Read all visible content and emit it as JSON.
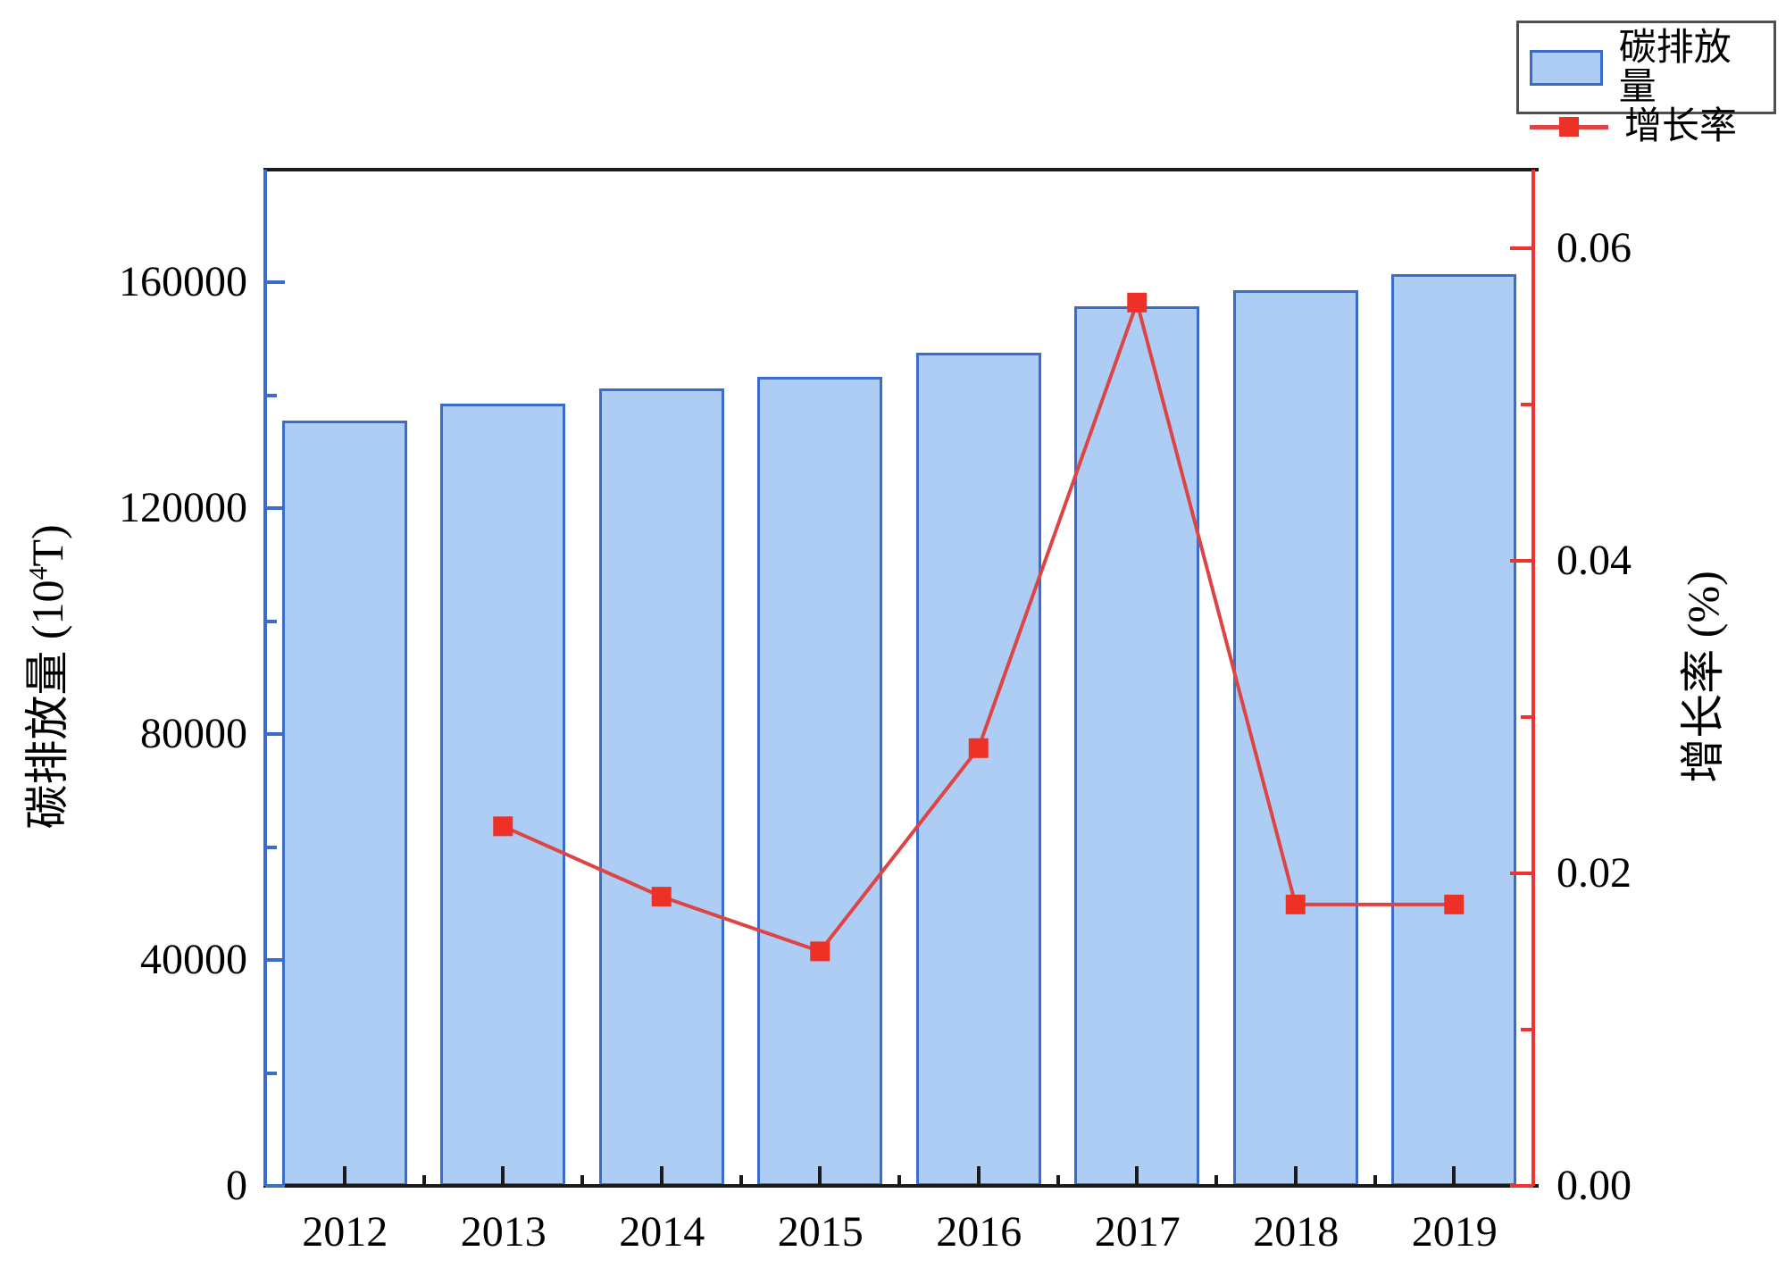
{
  "chart_data": {
    "type": "bar+line",
    "categories": [
      "2012",
      "2013",
      "2014",
      "2015",
      "2016",
      "2017",
      "2018",
      "2019"
    ],
    "series": [
      {
        "name": "碳排放量",
        "type": "bar",
        "axis": "left",
        "values": [
          135500,
          138600,
          141200,
          143300,
          147500,
          155800,
          158600,
          161500
        ]
      },
      {
        "name": "增长率",
        "type": "line",
        "axis": "right",
        "values": [
          null,
          0.023,
          0.0185,
          0.015,
          0.028,
          0.0565,
          0.018,
          0.018
        ]
      }
    ],
    "left_axis": {
      "title_pre": "碳排放量 (10",
      "title_sup": "4",
      "title_post": "T)",
      "min": 0,
      "max": 180000,
      "major_ticks": [
        0,
        40000,
        80000,
        120000,
        160000
      ],
      "tick_labels": [
        "0",
        "40000",
        "80000",
        "120000",
        "160000"
      ],
      "minor_step": 20000
    },
    "right_axis": {
      "title": "增长率 (%)",
      "min": 0,
      "max": 0.065,
      "major_ticks": [
        0,
        0.02,
        0.04,
        0.06
      ],
      "tick_labels": [
        "0.00",
        "0.02",
        "0.04",
        "0.06"
      ],
      "minor_step": 0.01
    },
    "legend": [
      {
        "label": "碳排放量",
        "swatch": "bar"
      },
      {
        "label": "增长率",
        "swatch": "line-with-square-marker"
      }
    ],
    "colors": {
      "bar_fill": "#aecdf4",
      "bar_border": "#3c6cc9",
      "left_axis": "#3c6cc9",
      "right_axis": "#ee3430",
      "line": "#dd4444",
      "marker": "#ee3126",
      "frame": "#1a1a1a"
    },
    "layout_hints": {
      "grid": false,
      "legend_position": "top-right"
    }
  }
}
